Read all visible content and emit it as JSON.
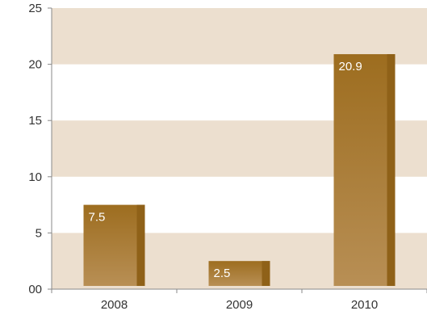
{
  "chart_data": {
    "type": "bar",
    "title": "",
    "xlabel": "",
    "ylabel": "",
    "categories": [
      "2008",
      "2009",
      "2010"
    ],
    "values": [
      7.5,
      2.5,
      20.9
    ],
    "data_labels": [
      "7.5",
      "2.5",
      "20.9"
    ],
    "ylim": [
      0,
      25
    ],
    "y_ticks": [
      0,
      5,
      10,
      15,
      20,
      25
    ],
    "y_tick_labels": [
      "00",
      "5",
      "10",
      "15",
      "20",
      "25"
    ],
    "grid": "alternating horizontal bands",
    "legend": "none",
    "colors": {
      "band": "#ecdfcf",
      "bar_top": "#9d6d1f",
      "bar_bottom": "#b88f55",
      "bar_side": "#8f6118",
      "axis": "#888888"
    }
  }
}
